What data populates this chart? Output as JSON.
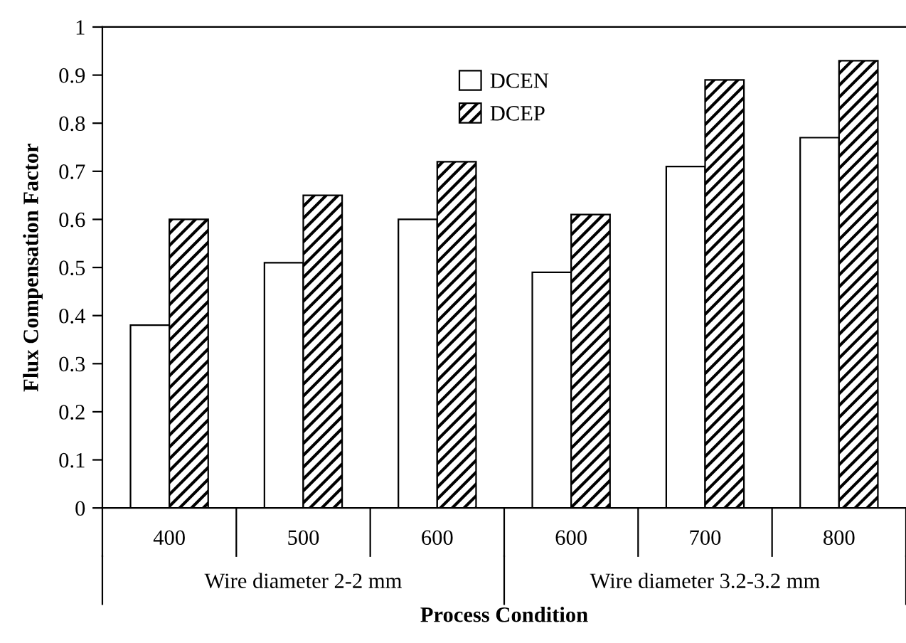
{
  "chart_data": {
    "type": "bar",
    "xlabel": "Process Condition",
    "ylabel": "Flux Compensation Factor",
    "categories": [
      "400",
      "500",
      "600",
      "600",
      "700",
      "800"
    ],
    "series": [
      {
        "name": "DCEN",
        "color": "#ffffff",
        "values": [
          0.38,
          0.51,
          0.6,
          0.49,
          0.71,
          0.77
        ]
      },
      {
        "name": "DCEP",
        "color": "#000000",
        "values": [
          0.6,
          0.65,
          0.72,
          0.61,
          0.89,
          0.93
        ]
      }
    ],
    "annotations": [
      "Wire diameter 2-2 mm",
      "Wire diameter 3.2-3.2 mm"
    ],
    "ylim": [
      0,
      1
    ],
    "yticks": [
      0,
      0.1,
      0.2,
      0.3,
      0.4,
      0.5,
      0.6,
      0.7,
      0.8,
      0.9,
      1
    ],
    "grid": false,
    "legend": "top"
  }
}
